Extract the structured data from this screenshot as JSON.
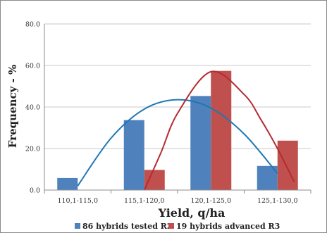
{
  "chart_data": {
    "type": "bar",
    "title": "",
    "xlabel": "Yield, q/ha",
    "ylabel": "Frequency  -  %",
    "categories": [
      "110,1-115,0",
      "115,1-120,0",
      "120,1-125,0",
      "125,1-130,0"
    ],
    "ylim": [
      0,
      80
    ],
    "yticks": [
      "0.0",
      "20.0",
      "40.0",
      "60.0",
      "80.0"
    ],
    "grid": "horizontal",
    "legend_position": "bottom",
    "series": [
      {
        "name": "86 hybrids tested R2",
        "values": [
          5.8,
          33.7,
          45.3,
          11.6
        ],
        "color": "#4f81bd"
      },
      {
        "name": "19 hybrids advanced R3",
        "values": [
          0,
          9.7,
          57.4,
          23.8
        ],
        "color": "#c0504d"
      }
    ],
    "trend_curves": [
      {
        "series": "86 hybrids tested R2",
        "color": "#1f77b4",
        "points": [
          [
            0.0,
            2.0
          ],
          [
            0.5,
            25.0
          ],
          [
            1.0,
            39.0
          ],
          [
            1.5,
            43.5
          ],
          [
            2.0,
            39.5
          ],
          [
            2.5,
            27.0
          ],
          [
            3.0,
            8.0
          ]
        ]
      },
      {
        "series": "19 hybrids advanced R3",
        "color": "#b42b33",
        "points": [
          [
            1.0,
            0.0
          ],
          [
            1.25,
            18.0
          ],
          [
            1.5,
            37.0
          ],
          [
            2.0,
            57.0
          ],
          [
            2.5,
            46.0
          ],
          [
            2.75,
            34.0
          ],
          [
            3.0,
            20.0
          ],
          [
            3.25,
            4.0
          ]
        ]
      }
    ]
  }
}
